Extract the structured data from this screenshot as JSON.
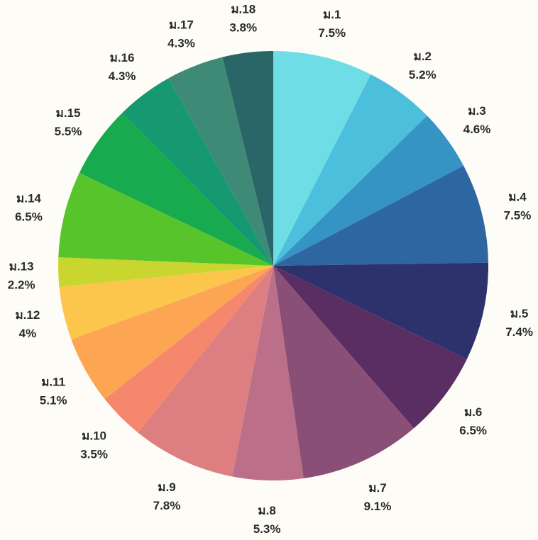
{
  "chart_data": {
    "type": "pie",
    "title": "",
    "categories": [
      "ม.1",
      "ม.2",
      "ม.3",
      "ม.4",
      "ม.5",
      "ม.6",
      "ม.7",
      "ม.8",
      "ม.9",
      "ม.10",
      "ม.11",
      "ม.12",
      "ม.13",
      "ม.14",
      "ม.15",
      "ม.16",
      "ม.17",
      "ม.18"
    ],
    "values": [
      7.5,
      5.2,
      4.6,
      7.5,
      7.4,
      6.5,
      9.1,
      5.3,
      7.8,
      3.5,
      5.1,
      4,
      2.2,
      6.5,
      5.5,
      4.3,
      4.3,
      3.8
    ],
    "value_labels": [
      "7.5%",
      "5.2%",
      "4.6%",
      "7.5%",
      "7.4%",
      "6.5%",
      "9.1%",
      "5.3%",
      "7.8%",
      "3.5%",
      "5.1%",
      "4%",
      "2.2%",
      "6.5%",
      "5.5%",
      "4.3%",
      "4.3%",
      "3.8%"
    ],
    "colors": [
      "#6fdde6",
      "#4bbfdb",
      "#3594c4",
      "#2e66a2",
      "#2d316c",
      "#5a2e63",
      "#8a4f77",
      "#bc6f89",
      "#dd7f81",
      "#f5876d",
      "#fca654",
      "#fcc64d",
      "#c9d62f",
      "#58c42b",
      "#18aa4e",
      "#169870",
      "#3e8a76",
      "#2a6667"
    ],
    "start_angle": "12 o'clock",
    "direction": "clockwise",
    "legend": "none"
  }
}
